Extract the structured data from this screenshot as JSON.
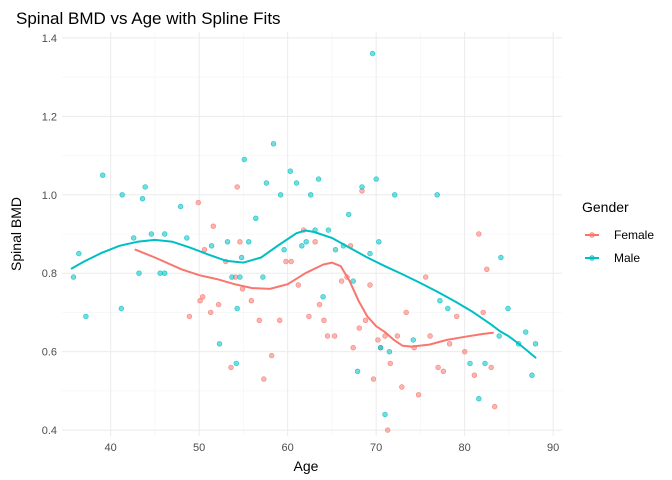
{
  "chart_data": {
    "type": "scatter",
    "title": "Spinal BMD vs Age with Spline Fits",
    "xlabel": "Age",
    "ylabel": "Spinal BMD",
    "xlim": [
      34.5,
      91
    ],
    "ylim": [
      0.385,
      1.415
    ],
    "x_ticks": [
      40,
      50,
      60,
      70,
      80,
      90
    ],
    "y_ticks": [
      0.4,
      0.6,
      0.8,
      1.0,
      1.2,
      1.4
    ],
    "x_tick_labels": [
      "40",
      "50",
      "60",
      "70",
      "80",
      "90"
    ],
    "y_tick_labels": [
      "0.4",
      "0.6",
      "0.8",
      "1.0",
      "1.2",
      "1.4"
    ],
    "grid": true,
    "legend": {
      "title": "Gender",
      "position": "right"
    },
    "series": [
      {
        "name": "Female",
        "color": "#F8766D",
        "points": [
          [
            48.9,
            0.69
          ],
          [
            49.9,
            0.98
          ],
          [
            50.1,
            0.73
          ],
          [
            50.4,
            0.74
          ],
          [
            50.6,
            0.86
          ],
          [
            51.3,
            0.7
          ],
          [
            51.6,
            0.92
          ],
          [
            52.2,
            0.72
          ],
          [
            53.0,
            0.83
          ],
          [
            53.6,
            0.56
          ],
          [
            54.1,
            0.79
          ],
          [
            54.3,
            1.02
          ],
          [
            54.6,
            0.88
          ],
          [
            54.9,
            0.76
          ],
          [
            55.9,
            0.73
          ],
          [
            56.8,
            0.68
          ],
          [
            57.3,
            0.53
          ],
          [
            58.2,
            0.59
          ],
          [
            59.1,
            0.68
          ],
          [
            59.8,
            0.83
          ],
          [
            60.4,
            0.83
          ],
          [
            61.2,
            0.77
          ],
          [
            61.8,
            0.91
          ],
          [
            62.4,
            0.69
          ],
          [
            63.1,
            0.88
          ],
          [
            63.6,
            0.72
          ],
          [
            64.1,
            0.68
          ],
          [
            64.5,
            0.64
          ],
          [
            65.3,
            0.64
          ],
          [
            66.1,
            0.78
          ],
          [
            66.7,
            0.79
          ],
          [
            67.1,
            0.87
          ],
          [
            67.4,
            0.61
          ],
          [
            68.1,
            0.66
          ],
          [
            68.4,
            1.01
          ],
          [
            68.8,
            0.68
          ],
          [
            69.3,
            0.77
          ],
          [
            69.7,
            0.53
          ],
          [
            70.2,
            0.63
          ],
          [
            70.5,
            0.61
          ],
          [
            71.0,
            0.64
          ],
          [
            71.3,
            0.4
          ],
          [
            71.6,
            0.57
          ],
          [
            72.4,
            0.64
          ],
          [
            72.9,
            0.51
          ],
          [
            73.4,
            0.7
          ],
          [
            74.3,
            0.61
          ],
          [
            74.8,
            0.49
          ],
          [
            75.6,
            0.79
          ],
          [
            76.1,
            0.64
          ],
          [
            77.0,
            0.56
          ],
          [
            77.6,
            0.55
          ],
          [
            78.3,
            0.62
          ],
          [
            79.1,
            0.69
          ],
          [
            80.0,
            0.6
          ],
          [
            81.1,
            0.54
          ],
          [
            81.6,
            0.9
          ],
          [
            82.1,
            0.7
          ],
          [
            82.5,
            0.81
          ],
          [
            83.0,
            0.56
          ],
          [
            83.4,
            0.46
          ]
        ],
        "spline": [
          [
            42.8,
            0.86
          ],
          [
            45,
            0.84
          ],
          [
            48,
            0.81
          ],
          [
            50,
            0.795
          ],
          [
            52,
            0.785
          ],
          [
            54,
            0.772
          ],
          [
            56,
            0.762
          ],
          [
            58,
            0.76
          ],
          [
            60,
            0.772
          ],
          [
            62,
            0.8
          ],
          [
            64,
            0.822
          ],
          [
            65,
            0.827
          ],
          [
            66,
            0.818
          ],
          [
            67,
            0.78
          ],
          [
            68,
            0.73
          ],
          [
            69,
            0.69
          ],
          [
            70,
            0.665
          ],
          [
            71,
            0.65
          ],
          [
            72,
            0.63
          ],
          [
            73,
            0.615
          ],
          [
            74,
            0.613
          ],
          [
            76,
            0.618
          ],
          [
            78,
            0.63
          ],
          [
            80,
            0.638
          ],
          [
            82,
            0.645
          ],
          [
            83.2,
            0.648
          ]
        ]
      },
      {
        "name": "Male",
        "color": "#00BFC4",
        "points": [
          [
            35.8,
            0.79
          ],
          [
            36.4,
            0.85
          ],
          [
            37.2,
            0.69
          ],
          [
            39.1,
            1.05
          ],
          [
            41.2,
            0.71
          ],
          [
            41.3,
            1.0
          ],
          [
            42.6,
            0.89
          ],
          [
            43.2,
            0.8
          ],
          [
            43.6,
            0.99
          ],
          [
            43.9,
            1.02
          ],
          [
            44.6,
            0.9
          ],
          [
            45.6,
            0.8
          ],
          [
            46.1,
            0.9
          ],
          [
            46.1,
            0.8
          ],
          [
            47.9,
            0.97
          ],
          [
            48.6,
            0.89
          ],
          [
            51.4,
            0.87
          ],
          [
            52.3,
            0.62
          ],
          [
            53.2,
            0.88
          ],
          [
            53.7,
            0.79
          ],
          [
            54.2,
            0.57
          ],
          [
            54.3,
            0.71
          ],
          [
            54.6,
            0.79
          ],
          [
            54.8,
            0.84
          ],
          [
            55.1,
            1.09
          ],
          [
            55.6,
            0.88
          ],
          [
            56.4,
            0.94
          ],
          [
            57.2,
            0.79
          ],
          [
            57.6,
            1.03
          ],
          [
            58.4,
            1.13
          ],
          [
            59.2,
            1.0
          ],
          [
            59.6,
            0.86
          ],
          [
            60.3,
            1.06
          ],
          [
            61.0,
            1.03
          ],
          [
            61.6,
            0.87
          ],
          [
            62.1,
            0.88
          ],
          [
            62.6,
            1.0
          ],
          [
            63.1,
            0.91
          ],
          [
            63.5,
            1.04
          ],
          [
            64.0,
            0.74
          ],
          [
            64.6,
            0.91
          ],
          [
            65.4,
            0.86
          ],
          [
            66.3,
            0.87
          ],
          [
            66.9,
            0.95
          ],
          [
            67.4,
            0.78
          ],
          [
            67.9,
            0.55
          ],
          [
            68.4,
            1.02
          ],
          [
            69.3,
            0.85
          ],
          [
            69.6,
            1.36
          ],
          [
            70.0,
            1.04
          ],
          [
            70.3,
            0.88
          ],
          [
            70.5,
            0.61
          ],
          [
            71.0,
            0.44
          ],
          [
            71.5,
            0.6
          ],
          [
            72.1,
            1.0
          ],
          [
            74.2,
            0.63
          ],
          [
            76.9,
            1.0
          ],
          [
            77.2,
            0.73
          ],
          [
            78.1,
            0.71
          ],
          [
            80.6,
            0.57
          ],
          [
            81.6,
            0.48
          ],
          [
            82.3,
            0.57
          ],
          [
            83.9,
            0.64
          ],
          [
            84.1,
            0.84
          ],
          [
            84.9,
            0.71
          ],
          [
            86.1,
            0.62
          ],
          [
            86.9,
            0.65
          ],
          [
            87.6,
            0.54
          ],
          [
            88.0,
            0.62
          ]
        ],
        "spline": [
          [
            35.6,
            0.812
          ],
          [
            37,
            0.83
          ],
          [
            39,
            0.852
          ],
          [
            41,
            0.87
          ],
          [
            43,
            0.88
          ],
          [
            45,
            0.885
          ],
          [
            47,
            0.88
          ],
          [
            49,
            0.865
          ],
          [
            51,
            0.848
          ],
          [
            53,
            0.832
          ],
          [
            55,
            0.827
          ],
          [
            57,
            0.84
          ],
          [
            59,
            0.872
          ],
          [
            61,
            0.902
          ],
          [
            62,
            0.909
          ],
          [
            63,
            0.905
          ],
          [
            65,
            0.89
          ],
          [
            67,
            0.865
          ],
          [
            69,
            0.84
          ],
          [
            71,
            0.818
          ],
          [
            73,
            0.797
          ],
          [
            75,
            0.775
          ],
          [
            77,
            0.752
          ],
          [
            79,
            0.727
          ],
          [
            81,
            0.7
          ],
          [
            83,
            0.669
          ],
          [
            84,
            0.652
          ],
          [
            85,
            0.639
          ],
          [
            86,
            0.622
          ],
          [
            87,
            0.604
          ],
          [
            88,
            0.585
          ]
        ]
      }
    ]
  }
}
